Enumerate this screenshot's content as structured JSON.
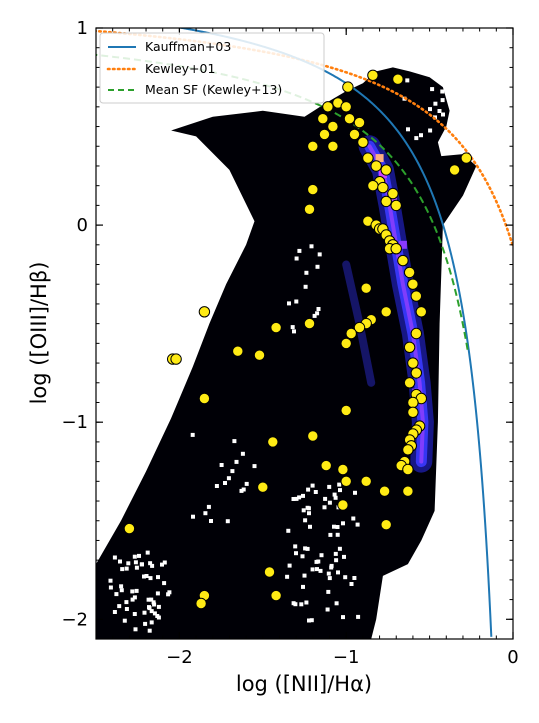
{
  "chart_data": {
    "type": "scatter",
    "title": "",
    "xlabel": "log ([NII]/Hα)",
    "ylabel": "log ([OIII]/Hβ)",
    "xlim": [
      -2.5,
      0
    ],
    "ylim": [
      -2.1,
      1
    ],
    "x_ticks": [
      -2,
      -1,
      0
    ],
    "y_ticks": [
      -2,
      -1,
      0,
      1
    ],
    "tick_labels_x": [
      "−2",
      "−1",
      "0"
    ],
    "tick_labels_y": [
      "−2",
      "−1",
      "0",
      "1"
    ],
    "legend": {
      "placement": "top-left",
      "entries": [
        {
          "label": "Kauffman+03",
          "color": "#1f77b4",
          "style": "solid"
        },
        {
          "label": "Kewley+01",
          "color": "#ff7f0e",
          "style": "dotted"
        },
        {
          "label": "Mean SF (Kewley+13)",
          "color": "#2ca02c",
          "style": "dashed"
        }
      ]
    },
    "background_density": {
      "type": "heatmap",
      "colormap": "gnuplot2",
      "outline": [
        [
          -2.5,
          -2.1
        ],
        [
          -2.5,
          -1.72
        ],
        [
          -2.35,
          -1.5
        ],
        [
          -2.2,
          -1.25
        ],
        [
          -2.05,
          -0.98
        ],
        [
          -1.92,
          -0.72
        ],
        [
          -1.82,
          -0.5
        ],
        [
          -1.72,
          -0.3
        ],
        [
          -1.6,
          -0.1
        ],
        [
          -1.55,
          0.02
        ],
        [
          -1.7,
          0.28
        ],
        [
          -1.9,
          0.45
        ],
        [
          -2.05,
          0.48
        ],
        [
          -1.8,
          0.55
        ],
        [
          -1.5,
          0.58
        ],
        [
          -1.25,
          0.55
        ],
        [
          -1.12,
          0.62
        ],
        [
          -1.0,
          0.68
        ],
        [
          -0.9,
          0.72
        ],
        [
          -0.82,
          0.78
        ],
        [
          -0.72,
          0.8
        ],
        [
          -0.62,
          0.78
        ],
        [
          -0.5,
          0.75
        ],
        [
          -0.42,
          0.7
        ],
        [
          -0.38,
          0.58
        ],
        [
          -0.4,
          0.5
        ],
        [
          -0.45,
          0.42
        ],
        [
          -0.43,
          0.35
        ],
        [
          -0.3,
          0.36
        ],
        [
          -0.22,
          0.3
        ],
        [
          -0.3,
          0.15
        ],
        [
          -0.38,
          0.05
        ],
        [
          -0.42,
          0.0
        ],
        [
          -0.44,
          -0.5
        ],
        [
          -0.45,
          -1.0
        ],
        [
          -0.47,
          -1.45
        ],
        [
          -0.55,
          -1.6
        ],
        [
          -0.63,
          -1.72
        ],
        [
          -0.78,
          -1.78
        ],
        [
          -0.82,
          -2.0
        ],
        [
          -0.85,
          -2.1
        ]
      ],
      "ridge": [
        [
          -0.86,
          0.4
        ],
        [
          -0.78,
          0.28
        ],
        [
          -0.74,
          0.1
        ],
        [
          -0.7,
          -0.1
        ],
        [
          -0.66,
          -0.3
        ],
        [
          -0.6,
          -0.55
        ],
        [
          -0.56,
          -0.8
        ],
        [
          -0.54,
          -1.0
        ],
        [
          -0.55,
          -1.2
        ]
      ],
      "ridge_branch": [
        [
          -1.0,
          -0.2
        ],
        [
          -0.92,
          -0.5
        ],
        [
          -0.85,
          -0.8
        ]
      ]
    },
    "lines": {
      "kauffmann03": {
        "name": "Kauffman+03",
        "formula": "0.61/(x-0.05)+1.3",
        "x_range": [
          -2.6,
          -0.13
        ]
      },
      "kewley01": {
        "name": "Kewley+01",
        "formula": "0.61/(x-0.47)+1.19",
        "x_range": [
          -2.6,
          0.0
        ]
      },
      "kewley13": {
        "name": "Mean SF (Kewley+13)",
        "formula": "0.61/(x-0.08)+1.1",
        "x_range": [
          -2.6,
          -0.27
        ]
      }
    },
    "series": [
      {
        "marker": "circle",
        "color": "#ffeb14",
        "edgecolor": "#000000",
        "points": [
          [
            -0.84,
            0.76
          ],
          [
            -0.69,
            0.74
          ],
          [
            -0.99,
            0.7
          ],
          [
            -1.05,
            0.62
          ],
          [
            -1.11,
            0.6
          ],
          [
            -1.0,
            0.6
          ],
          [
            -0.98,
            0.54
          ],
          [
            -1.14,
            0.54
          ],
          [
            -0.92,
            0.52
          ],
          [
            -1.08,
            0.5
          ],
          [
            -1.13,
            0.46
          ],
          [
            -0.95,
            0.46
          ],
          [
            -0.9,
            0.42
          ],
          [
            -1.2,
            0.4
          ],
          [
            -1.08,
            0.4
          ],
          [
            -0.87,
            0.34
          ],
          [
            -0.28,
            0.34
          ],
          [
            -0.82,
            0.3
          ],
          [
            -0.76,
            0.28
          ],
          [
            -0.35,
            0.28
          ],
          [
            -0.8,
            0.22
          ],
          [
            -0.84,
            0.2
          ],
          [
            -0.78,
            0.19
          ],
          [
            -1.2,
            0.18
          ],
          [
            -0.72,
            0.16
          ],
          [
            -0.76,
            0.12
          ],
          [
            -0.7,
            0.1
          ],
          [
            -1.22,
            0.08
          ],
          [
            -0.87,
            0.02
          ],
          [
            -0.82,
            0.0
          ],
          [
            -0.8,
            -0.02
          ],
          [
            -0.78,
            -0.02
          ],
          [
            -0.76,
            -0.05
          ],
          [
            -0.74,
            -0.08
          ],
          [
            -0.72,
            -0.1
          ],
          [
            -0.74,
            -0.12
          ],
          [
            -0.7,
            -0.12
          ],
          [
            -0.66,
            -0.18
          ],
          [
            -0.62,
            -0.24
          ],
          [
            -0.6,
            -0.3
          ],
          [
            -0.88,
            -0.32
          ],
          [
            -0.58,
            -0.36
          ],
          [
            -0.76,
            -0.44
          ],
          [
            -0.55,
            -0.44
          ],
          [
            -0.85,
            -0.48
          ],
          [
            -0.88,
            -0.5
          ],
          [
            -0.92,
            -0.52
          ],
          [
            -0.58,
            -0.55
          ],
          [
            -0.97,
            -0.55
          ],
          [
            -1.0,
            -0.6
          ],
          [
            -1.22,
            -0.5
          ],
          [
            -1.42,
            -0.52
          ],
          [
            -1.85,
            -0.44
          ],
          [
            -1.65,
            -0.64
          ],
          [
            -1.52,
            -0.66
          ],
          [
            -2.04,
            -0.68
          ],
          [
            -2.02,
            -0.68
          ],
          [
            -0.62,
            -0.62
          ],
          [
            -0.6,
            -0.7
          ],
          [
            -0.58,
            -0.75
          ],
          [
            -0.62,
            -0.8
          ],
          [
            -0.58,
            -0.86
          ],
          [
            -0.55,
            -0.88
          ],
          [
            -0.6,
            -0.9
          ],
          [
            -0.6,
            -0.95
          ],
          [
            -1.0,
            -0.94
          ],
          [
            -1.85,
            -0.88
          ],
          [
            -0.56,
            -1.02
          ],
          [
            -0.58,
            -1.04
          ],
          [
            -0.6,
            -1.06
          ],
          [
            -0.62,
            -1.09
          ],
          [
            -0.61,
            -1.12
          ],
          [
            -0.63,
            -1.14
          ],
          [
            -1.2,
            -1.07
          ],
          [
            -1.44,
            -1.1
          ],
          [
            -0.65,
            -1.2
          ],
          [
            -0.67,
            -1.22
          ],
          [
            -0.63,
            -1.24
          ],
          [
            -1.02,
            -1.24
          ],
          [
            -1.12,
            -1.22
          ],
          [
            -1.0,
            -1.3
          ],
          [
            -0.88,
            -1.3
          ],
          [
            -1.5,
            -1.33
          ],
          [
            -0.77,
            -1.35
          ],
          [
            -0.63,
            -1.35
          ],
          [
            -1.02,
            -1.42
          ],
          [
            -0.76,
            -1.52
          ],
          [
            -2.3,
            -1.54
          ],
          [
            -1.46,
            -1.76
          ],
          [
            -1.42,
            -1.88
          ],
          [
            -1.85,
            -1.88
          ],
          [
            -1.87,
            -1.92
          ]
        ]
      }
    ]
  }
}
